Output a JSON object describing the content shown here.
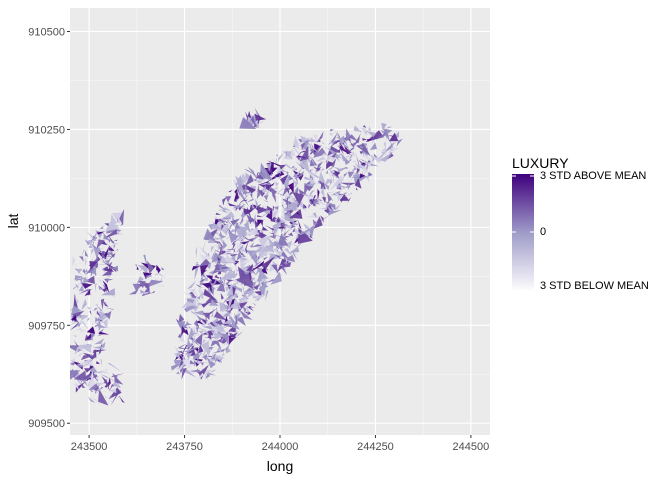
{
  "chart_data": {
    "type": "map",
    "xlabel": "long",
    "ylabel": "lat",
    "xlim": [
      243450,
      244550
    ],
    "ylim": [
      909470,
      910560
    ],
    "x_ticks": [
      243500,
      243750,
      244000,
      244250,
      244500
    ],
    "y_ticks": [
      909500,
      909750,
      910000,
      910250,
      910500
    ],
    "x_tick_labels": [
      "243500",
      "243750",
      "244000",
      "244250",
      "244500"
    ],
    "y_tick_labels": [
      "909500",
      "909750",
      "910000",
      "910250",
      "910500"
    ],
    "grid": true,
    "legend": {
      "title": "LUXURY",
      "placement": "right",
      "labels": [
        "3 STD ABOVE MEAN",
        "0",
        "3 STD BELOW MEAN"
      ],
      "low_color": "#fcfbfd",
      "mid_color": "#9e9ac8",
      "high_color": "#3f007d"
    },
    "missing_color": "#7f7f7f",
    "panel_color": "#ebebeb",
    "regions": [
      {
        "name": "far-west-strip",
        "points": [
          [
            243450,
            909620
          ],
          [
            243470,
            909900
          ],
          [
            243510,
            910000
          ],
          [
            243580,
            910030
          ],
          [
            243570,
            909950
          ],
          [
            243520,
            909620
          ],
          [
            243480,
            909580
          ]
        ]
      },
      {
        "name": "west-strip-small",
        "points": [
          [
            243500,
            909560
          ],
          [
            243580,
            909560
          ],
          [
            243600,
            909640
          ],
          [
            243520,
            909640
          ]
        ]
      },
      {
        "name": "middle-west-patch",
        "points": [
          [
            243620,
            909830
          ],
          [
            243680,
            909830
          ],
          [
            243690,
            909900
          ],
          [
            243630,
            909910
          ]
        ]
      },
      {
        "name": "main-diagonal-region",
        "points": [
          [
            243730,
            909620
          ],
          [
            243820,
            909620
          ],
          [
            244050,
            909950
          ],
          [
            244330,
            910230
          ],
          [
            244250,
            910260
          ],
          [
            244120,
            910240
          ],
          [
            244020,
            910210
          ],
          [
            243960,
            910150
          ],
          [
            243880,
            910120
          ],
          [
            243800,
            909950
          ],
          [
            243760,
            909830
          ],
          [
            243730,
            909720
          ]
        ]
      },
      {
        "name": "north-outlier",
        "points": [
          [
            243910,
            910260
          ],
          [
            243950,
            910260
          ],
          [
            243940,
            910290
          ],
          [
            243920,
            910290
          ]
        ]
      }
    ]
  }
}
